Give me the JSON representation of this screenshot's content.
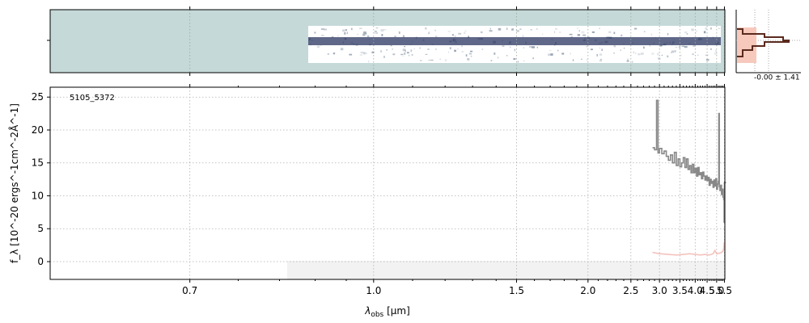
{
  "chart_data": {
    "type": "line",
    "label": "5105_5372",
    "xlabel_main": "λ",
    "xlabel_sub": "obs",
    "xlabel_unit": " [μm]",
    "ylabel": "f_λ [10^-20 ergs^-1cm^-2Å^-1]",
    "x_scale": "reciprocal",
    "xlim": [
      0.57,
      5.53
    ],
    "ylim": [
      -2.7,
      26.5
    ],
    "xticks": [
      0.7,
      1.0,
      1.5,
      2.0,
      2.5,
      3.0,
      3.5,
      4.0,
      4.5,
      5.0,
      5.5
    ],
    "xtick_labels": [
      "0.7",
      "1.0",
      "1.5",
      "2.0",
      "2.5",
      "3.0",
      "3.5",
      "4.0",
      "4.5",
      "5.0",
      "5.5"
    ],
    "yticks": [
      0,
      5,
      10,
      15,
      20,
      25
    ],
    "ytick_labels": [
      "0",
      "5",
      "10",
      "15",
      "20",
      "25"
    ],
    "grid": true,
    "spectrum_color": "#888888",
    "error_color": "#f4c2bd",
    "spectrum": {
      "x": [
        2.86,
        2.9,
        2.94,
        2.97,
        3.0,
        3.05,
        3.1,
        3.15,
        3.2,
        3.25,
        3.3,
        3.35,
        3.4,
        3.45,
        3.5,
        3.55,
        3.6,
        3.65,
        3.7,
        3.75,
        3.8,
        3.85,
        3.9,
        3.95,
        4.0,
        4.05,
        4.1,
        4.15,
        4.2,
        4.25,
        4.3,
        4.35,
        4.4,
        4.45,
        4.5,
        4.55,
        4.6,
        4.65,
        4.7,
        4.75,
        4.8,
        4.85,
        4.9,
        4.95,
        5.0,
        5.05,
        5.1,
        5.13,
        5.16,
        5.2,
        5.25,
        5.3,
        5.35,
        5.4,
        5.45,
        5.48,
        5.5
      ],
      "y": [
        17.3,
        17.0,
        24.5,
        16.5,
        17.2,
        16.4,
        16.8,
        16.0,
        15.4,
        16.2,
        15.0,
        16.6,
        14.6,
        15.6,
        14.4,
        15.0,
        15.8,
        14.3,
        15.6,
        14.0,
        14.6,
        13.5,
        14.8,
        13.5,
        14.2,
        13.0,
        14.3,
        13.2,
        13.5,
        12.6,
        13.6,
        13.0,
        12.4,
        13.0,
        12.3,
        12.8,
        11.6,
        12.5,
        11.9,
        12.2,
        11.3,
        12.4,
        11.5,
        12.6,
        11.0,
        11.8,
        12.2,
        22.5,
        11.4,
        10.8,
        11.6,
        10.2,
        11.0,
        9.8,
        9.4,
        6.0,
        12.0
      ]
    },
    "error": {
      "x": [
        2.86,
        3.0,
        3.2,
        3.4,
        3.6,
        3.8,
        4.0,
        4.2,
        4.4,
        4.6,
        4.8,
        4.9,
        5.0,
        5.2,
        5.3,
        5.4,
        5.45,
        5.48,
        5.5
      ],
      "y": [
        1.4,
        1.2,
        1.1,
        1.0,
        1.1,
        1.2,
        1.1,
        1.0,
        1.1,
        1.0,
        1.2,
        1.7,
        1.2,
        1.3,
        1.4,
        1.6,
        2.0,
        2.6,
        3.0
      ]
    },
    "inset_label": "-0.00 ± 1.41",
    "inset_colors": {
      "hist_line": "#5a2a1e",
      "hist_fill": "#f7c9bc"
    },
    "top_panel_colors": {
      "background": "#c4d9d8",
      "spectrum_band": "#2a3560"
    }
  }
}
